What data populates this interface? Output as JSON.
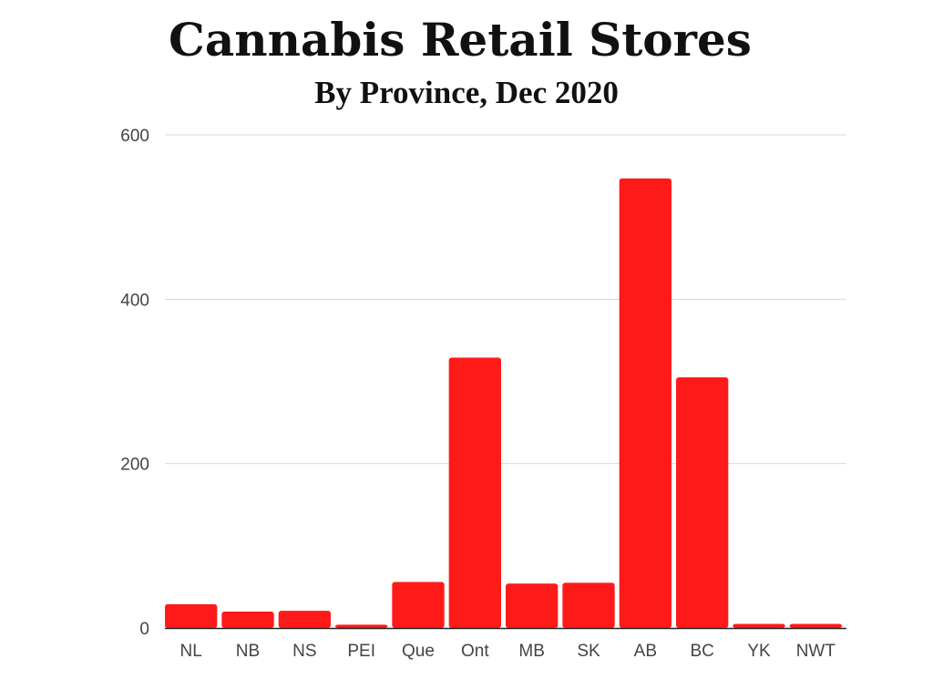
{
  "chart_data": {
    "type": "bar",
    "title": "Cannabis Retail Stores",
    "subtitle": "By Province, Dec 2020",
    "xlabel": "",
    "ylabel": "",
    "categories": [
      "NL",
      "NB",
      "NS",
      "PEI",
      "Que",
      "Ont",
      "MB",
      "SK",
      "AB",
      "BC",
      "YK",
      "NWT"
    ],
    "values": [
      29,
      20,
      21,
      4,
      56,
      329,
      54,
      55,
      547,
      305,
      5,
      5
    ],
    "ylim": [
      0,
      600
    ],
    "yticks": [
      "0",
      "200",
      "400",
      "600"
    ],
    "grid": true,
    "legend": "none",
    "colors": {
      "bar": "#ff1a1a",
      "grid": "#d9d9d9",
      "axis": "#222222",
      "text": "#444444"
    }
  }
}
